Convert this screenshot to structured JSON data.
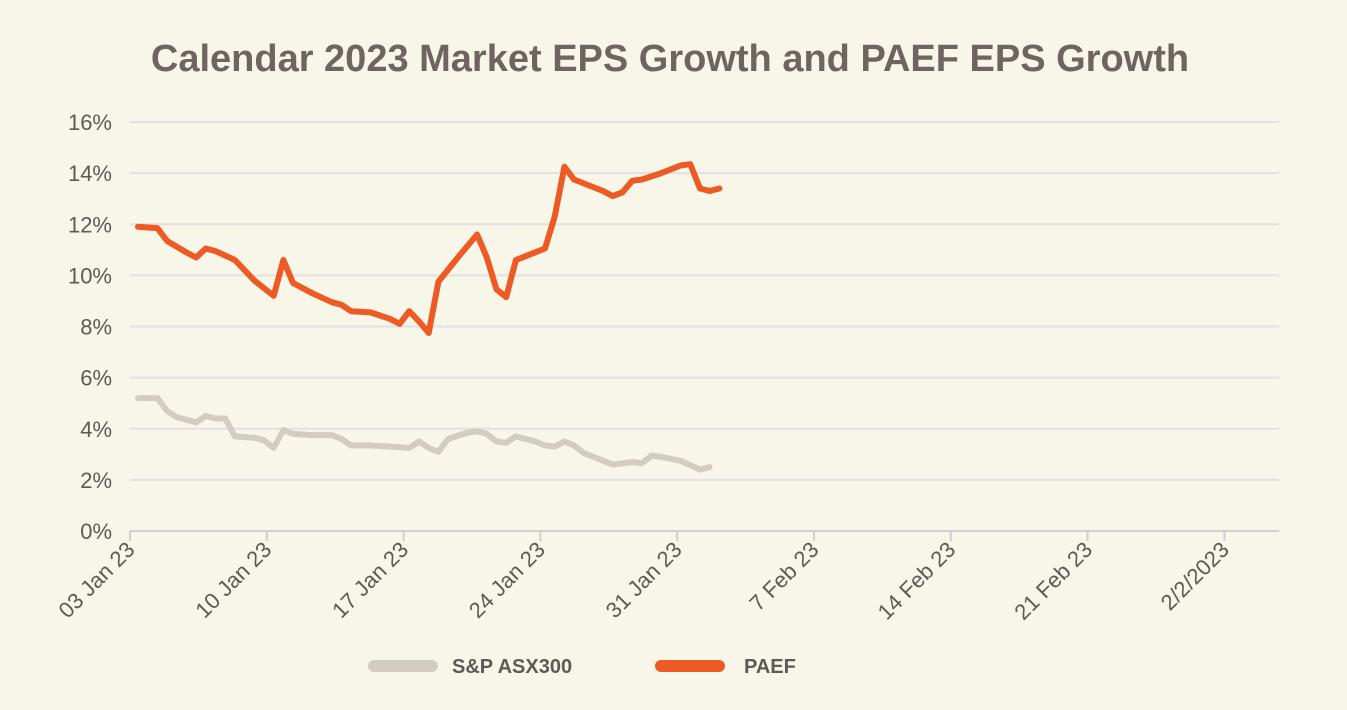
{
  "chart_data": {
    "type": "line",
    "title": "Calendar 2023 Market EPS Growth and PAEF EPS Growth",
    "xlabel": "",
    "ylabel": "",
    "ylim": [
      0,
      16
    ],
    "yticks": [
      "0%",
      "2%",
      "4%",
      "6%",
      "8%",
      "10%",
      "12%",
      "14%",
      "16%"
    ],
    "xticks": [
      "03 Jan 23",
      "10 Jan 23",
      "17 Jan 23",
      "24 Jan 23",
      "31 Jan 23",
      "7 Feb 23",
      "14 Feb 23",
      "21 Feb 23",
      "2/2/2023"
    ],
    "grid": true,
    "legend_position": "bottom",
    "n_points": 60,
    "series": [
      {
        "name": "S&P ASX300",
        "color": "#d3cdbf",
        "points": [
          [
            0,
            5.2
          ],
          [
            2,
            5.2
          ],
          [
            3,
            4.7
          ],
          [
            4,
            4.45
          ],
          [
            6,
            4.25
          ],
          [
            7,
            4.5
          ],
          [
            8,
            4.4
          ],
          [
            9,
            4.4
          ],
          [
            10,
            3.7
          ],
          [
            12,
            3.65
          ],
          [
            13,
            3.55
          ],
          [
            14,
            3.25
          ],
          [
            15,
            3.95
          ],
          [
            16,
            3.8
          ],
          [
            18,
            3.75
          ],
          [
            20,
            3.75
          ],
          [
            21,
            3.6
          ],
          [
            22,
            3.35
          ],
          [
            24,
            3.35
          ],
          [
            26,
            3.3
          ],
          [
            28,
            3.25
          ],
          [
            29,
            3.5
          ],
          [
            30,
            3.25
          ],
          [
            31,
            3.1
          ],
          [
            32,
            3.6
          ],
          [
            34,
            3.85
          ],
          [
            35,
            3.9
          ],
          [
            36,
            3.8
          ],
          [
            37,
            3.5
          ],
          [
            38,
            3.45
          ],
          [
            39,
            3.7
          ],
          [
            41,
            3.5
          ],
          [
            42,
            3.35
          ],
          [
            43,
            3.3
          ],
          [
            44,
            3.5
          ],
          [
            45,
            3.35
          ],
          [
            46,
            3.05
          ],
          [
            48,
            2.75
          ],
          [
            49,
            2.6
          ],
          [
            50,
            2.65
          ],
          [
            51,
            2.7
          ],
          [
            52,
            2.65
          ],
          [
            53,
            2.95
          ],
          [
            54,
            2.9
          ],
          [
            56,
            2.75
          ],
          [
            58,
            2.4
          ],
          [
            59,
            2.5
          ]
        ]
      },
      {
        "name": "PAEF",
        "color": "#ee5a24",
        "points": [
          [
            0,
            11.9
          ],
          [
            2,
            11.85
          ],
          [
            3,
            11.35
          ],
          [
            5,
            10.9
          ],
          [
            6,
            10.7
          ],
          [
            7,
            11.05
          ],
          [
            8,
            10.95
          ],
          [
            10,
            10.6
          ],
          [
            12,
            9.8
          ],
          [
            13,
            9.5
          ],
          [
            14,
            9.2
          ],
          [
            15,
            10.6
          ],
          [
            16,
            9.7
          ],
          [
            18,
            9.3
          ],
          [
            20,
            8.95
          ],
          [
            21,
            8.85
          ],
          [
            22,
            8.6
          ],
          [
            24,
            8.55
          ],
          [
            26,
            8.3
          ],
          [
            27,
            8.1
          ],
          [
            28,
            8.6
          ],
          [
            29,
            8.2
          ],
          [
            30,
            7.75
          ],
          [
            31,
            9.75
          ],
          [
            33,
            10.7
          ],
          [
            35,
            11.6
          ],
          [
            36,
            10.7
          ],
          [
            37,
            9.45
          ],
          [
            38,
            9.15
          ],
          [
            39,
            10.6
          ],
          [
            40,
            10.75
          ],
          [
            42,
            11.05
          ],
          [
            43,
            12.3
          ],
          [
            44,
            14.25
          ],
          [
            45,
            13.75
          ],
          [
            46,
            13.6
          ],
          [
            48,
            13.3
          ],
          [
            49,
            13.1
          ],
          [
            50,
            13.25
          ],
          [
            51,
            13.7
          ],
          [
            52,
            13.75
          ],
          [
            54,
            14.0
          ],
          [
            56,
            14.3
          ],
          [
            57,
            14.35
          ],
          [
            58,
            13.4
          ],
          [
            59,
            13.3
          ],
          [
            60,
            13.4
          ]
        ]
      }
    ]
  }
}
